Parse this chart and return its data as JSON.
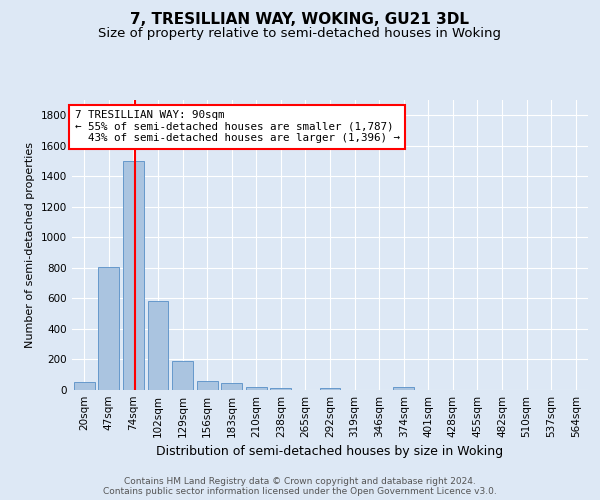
{
  "title": "7, TRESILLIAN WAY, WOKING, GU21 3DL",
  "subtitle": "Size of property relative to semi-detached houses in Woking",
  "xlabel": "Distribution of semi-detached houses by size in Woking",
  "ylabel": "Number of semi-detached properties",
  "footnote1": "Contains HM Land Registry data © Crown copyright and database right 2024.",
  "footnote2": "Contains public sector information licensed under the Open Government Licence v3.0.",
  "bar_labels": [
    "20sqm",
    "47sqm",
    "74sqm",
    "102sqm",
    "129sqm",
    "156sqm",
    "183sqm",
    "210sqm",
    "238sqm",
    "265sqm",
    "292sqm",
    "319sqm",
    "346sqm",
    "374sqm",
    "401sqm",
    "428sqm",
    "455sqm",
    "482sqm",
    "510sqm",
    "537sqm",
    "564sqm"
  ],
  "bar_values": [
    55,
    807,
    1500,
    580,
    193,
    62,
    43,
    18,
    12,
    0,
    12,
    0,
    0,
    18,
    0,
    0,
    0,
    0,
    0,
    0,
    0
  ],
  "bar_color": "#aac4e0",
  "bar_edgecolor": "#6699cc",
  "bar_linewidth": 0.7,
  "property_size": 90,
  "property_label": "7 TRESILLIAN WAY: 90sqm",
  "pct_smaller": 55,
  "n_smaller": 1787,
  "pct_larger": 43,
  "n_larger": 1396,
  "annotation_box_color": "white",
  "annotation_box_edgecolor": "red",
  "redline_color": "red",
  "ylim": [
    0,
    1900
  ],
  "yticks": [
    0,
    200,
    400,
    600,
    800,
    1000,
    1200,
    1400,
    1600,
    1800
  ],
  "background_color": "#dde8f5",
  "grid_color": "white",
  "title_fontsize": 11,
  "subtitle_fontsize": 9.5,
  "xlabel_fontsize": 9,
  "ylabel_fontsize": 8,
  "tick_fontsize": 7.5,
  "annotation_fontsize": 7.8,
  "footnote_fontsize": 6.5
}
